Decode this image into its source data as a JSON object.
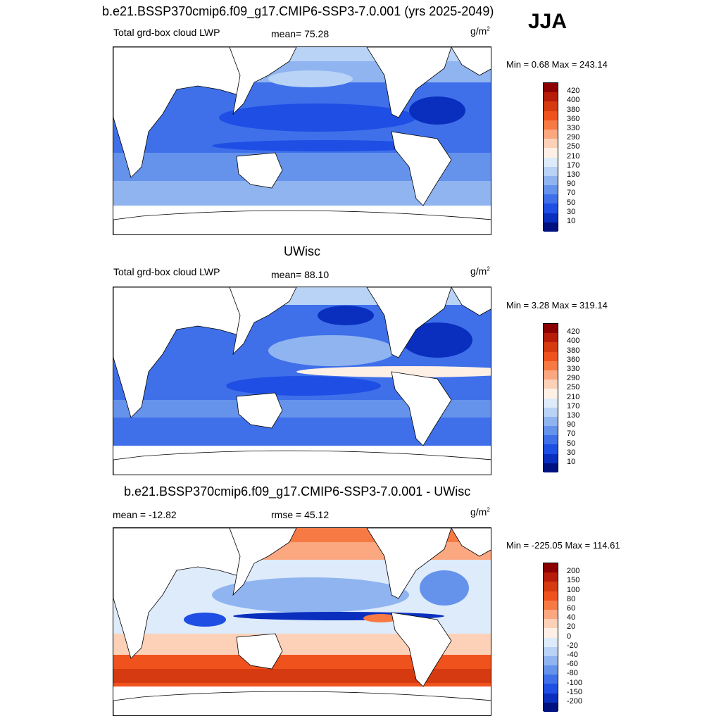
{
  "season": "JJA",
  "panels": [
    {
      "title": "b.e21.BSSP370cmip6.f09_g17.CMIP6-SSP3-7.0.001 (yrs 2025-2049)",
      "left_label": "Total grd-box cloud LWP",
      "center_label": "mean=  75.28",
      "units": "g/m",
      "units_sup": "2",
      "minmax": "Min =   0.68 Max = 243.14",
      "colorbar": {
        "labels": [
          "420",
          "400",
          "380",
          "360",
          "330",
          "290",
          "250",
          "210",
          "170",
          "130",
          "90",
          "70",
          "50",
          "30",
          "10"
        ],
        "colors": [
          "#8b0000",
          "#b71c0a",
          "#d63a10",
          "#f0521e",
          "#f77a44",
          "#fba780",
          "#fdd1b7",
          "#fff0e6",
          "#deebfb",
          "#b8d3f6",
          "#8fb4f0",
          "#6593ec",
          "#3f70ea",
          "#1e4ee4",
          "#0a2fbe",
          "#00127f"
        ]
      }
    },
    {
      "title": "UWisc",
      "left_label": "Total grd-box cloud LWP",
      "center_label": "mean=  88.10",
      "units": "g/m",
      "units_sup": "2",
      "minmax": "Min =   3.28 Max = 319.14",
      "colorbar": {
        "labels": [
          "420",
          "400",
          "380",
          "360",
          "330",
          "290",
          "250",
          "210",
          "170",
          "130",
          "90",
          "70",
          "50",
          "30",
          "10"
        ],
        "colors": [
          "#8b0000",
          "#b71c0a",
          "#d63a10",
          "#f0521e",
          "#f77a44",
          "#fba780",
          "#fdd1b7",
          "#fff0e6",
          "#deebfb",
          "#b8d3f6",
          "#8fb4f0",
          "#6593ec",
          "#3f70ea",
          "#1e4ee4",
          "#0a2fbe",
          "#00127f"
        ]
      }
    },
    {
      "title": "b.e21.BSSP370cmip6.f09_g17.CMIP6-SSP3-7.0.001 - UWisc",
      "left_label": "mean = -12.82",
      "center_label": "rmse =  45.12",
      "units": "g/m",
      "units_sup": "2",
      "minmax": "Min = -225.05 Max = 114.61",
      "colorbar": {
        "labels": [
          "200",
          "150",
          "100",
          "80",
          "60",
          "40",
          "20",
          "0",
          "-20",
          "-40",
          "-60",
          "-80",
          "-100",
          "-150",
          "-200"
        ],
        "colors": [
          "#8b0000",
          "#b71c0a",
          "#d63a10",
          "#f0521e",
          "#f77a44",
          "#fba780",
          "#fdd1b7",
          "#fff0e6",
          "#deebfb",
          "#b8d3f6",
          "#8fb4f0",
          "#6593ec",
          "#3f70ea",
          "#1e4ee4",
          "#0a2fbe",
          "#00127f"
        ]
      }
    }
  ]
}
